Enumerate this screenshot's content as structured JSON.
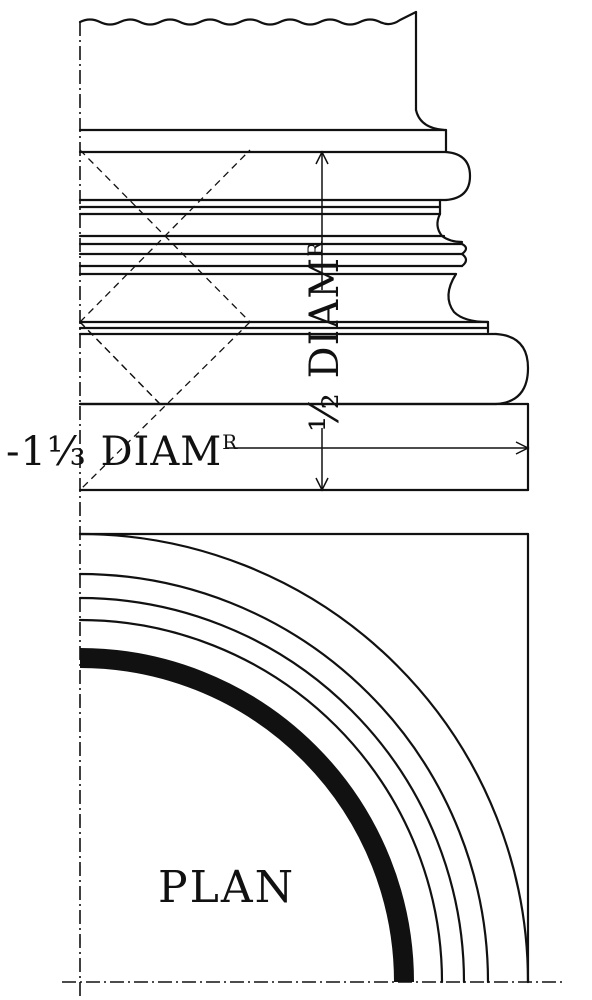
{
  "labels": {
    "diameter_third": "-1⅓ DIAM",
    "diameter_third_sup": "R",
    "diameter_half": "½ DIAM",
    "diameter_half_sup": "R",
    "plan": "PLAN"
  },
  "colors": {
    "ink": "#111111",
    "paper": "#ffffff"
  }
}
